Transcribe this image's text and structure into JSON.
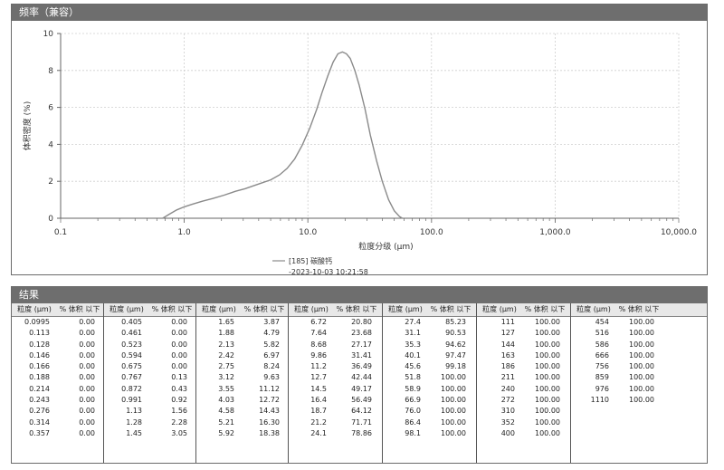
{
  "freq_panel": {
    "title": "频率（兼容）"
  },
  "results_panel": {
    "title": "结果"
  },
  "chart_data": {
    "type": "line",
    "title": "",
    "xlabel": "粒度分级 (µm)",
    "ylabel": "体积密度 (%)",
    "x_scale": "log",
    "xlim": [
      0.1,
      10000
    ],
    "ylim": [
      0,
      10
    ],
    "x_ticks": [
      0.1,
      1,
      10,
      100,
      1000,
      10000
    ],
    "x_tick_labels": [
      "0.1",
      "1.0",
      "10.0",
      "100.0",
      "1,000.0",
      "10,000.0"
    ],
    "y_ticks": [
      0,
      2,
      4,
      6,
      8,
      10
    ],
    "y_tick_labels": [
      "0",
      "2",
      "4",
      "6",
      "8",
      "10"
    ],
    "grid": true,
    "legend_position": "bottom-center",
    "series": [
      {
        "name": "[185] 碳酸钙",
        "subtitle": "-2023-10-03 10:21:58",
        "color": "#8a8a8a",
        "x": [
          0.67,
          0.75,
          0.87,
          1.0,
          1.15,
          1.4,
          1.7,
          2.1,
          2.6,
          3.1,
          3.6,
          4.2,
          5.0,
          5.9,
          6.8,
          7.8,
          9.0,
          10.4,
          11.8,
          13.0,
          14.5,
          16.0,
          17.5,
          19.0,
          20.5,
          22.0,
          24.0,
          26.0,
          29.0,
          32.0,
          36.0,
          40.0,
          45.0,
          50.0,
          55.0,
          58.0
        ],
        "y": [
          0.0,
          0.2,
          0.45,
          0.62,
          0.75,
          0.92,
          1.07,
          1.25,
          1.46,
          1.6,
          1.75,
          1.9,
          2.08,
          2.35,
          2.7,
          3.2,
          3.95,
          4.9,
          5.9,
          6.8,
          7.7,
          8.45,
          8.9,
          9.0,
          8.9,
          8.65,
          8.0,
          7.2,
          5.9,
          4.5,
          3.1,
          2.0,
          1.0,
          0.4,
          0.1,
          0.0
        ]
      }
    ]
  },
  "results": {
    "header_size": "粒度 (µm)",
    "header_pct": "% 体积 以下",
    "columns": [
      [
        [
          "0.0995",
          "0.00"
        ],
        [
          "0.113",
          "0.00"
        ],
        [
          "0.128",
          "0.00"
        ],
        [
          "0.146",
          "0.00"
        ],
        [
          "0.166",
          "0.00"
        ],
        [
          "0.188",
          "0.00"
        ],
        [
          "0.214",
          "0.00"
        ],
        [
          "0.243",
          "0.00"
        ],
        [
          "0.276",
          "0.00"
        ],
        [
          "0.314",
          "0.00"
        ],
        [
          "0.357",
          "0.00"
        ]
      ],
      [
        [
          "0.405",
          "0.00"
        ],
        [
          "0.461",
          "0.00"
        ],
        [
          "0.523",
          "0.00"
        ],
        [
          "0.594",
          "0.00"
        ],
        [
          "0.675",
          "0.00"
        ],
        [
          "0.767",
          "0.13"
        ],
        [
          "0.872",
          "0.43"
        ],
        [
          "0.991",
          "0.92"
        ],
        [
          "1.13",
          "1.56"
        ],
        [
          "1.28",
          "2.28"
        ],
        [
          "1.45",
          "3.05"
        ]
      ],
      [
        [
          "1.65",
          "3.87"
        ],
        [
          "1.88",
          "4.79"
        ],
        [
          "2.13",
          "5.82"
        ],
        [
          "2.42",
          "6.97"
        ],
        [
          "2.75",
          "8.24"
        ],
        [
          "3.12",
          "9.63"
        ],
        [
          "3.55",
          "11.12"
        ],
        [
          "4.03",
          "12.72"
        ],
        [
          "4.58",
          "14.43"
        ],
        [
          "5.21",
          "16.30"
        ],
        [
          "5.92",
          "18.38"
        ]
      ],
      [
        [
          "6.72",
          "20.80"
        ],
        [
          "7.64",
          "23.68"
        ],
        [
          "8.68",
          "27.17"
        ],
        [
          "9.86",
          "31.41"
        ],
        [
          "11.2",
          "36.49"
        ],
        [
          "12.7",
          "42.44"
        ],
        [
          "14.5",
          "49.17"
        ],
        [
          "16.4",
          "56.49"
        ],
        [
          "18.7",
          "64.12"
        ],
        [
          "21.2",
          "71.71"
        ],
        [
          "24.1",
          "78.86"
        ]
      ],
      [
        [
          "27.4",
          "85.23"
        ],
        [
          "31.1",
          "90.53"
        ],
        [
          "35.3",
          "94.62"
        ],
        [
          "40.1",
          "97.47"
        ],
        [
          "45.6",
          "99.18"
        ],
        [
          "51.8",
          "100.00"
        ],
        [
          "58.9",
          "100.00"
        ],
        [
          "66.9",
          "100.00"
        ],
        [
          "76.0",
          "100.00"
        ],
        [
          "86.4",
          "100.00"
        ],
        [
          "98.1",
          "100.00"
        ]
      ],
      [
        [
          "111",
          "100.00"
        ],
        [
          "127",
          "100.00"
        ],
        [
          "144",
          "100.00"
        ],
        [
          "163",
          "100.00"
        ],
        [
          "186",
          "100.00"
        ],
        [
          "211",
          "100.00"
        ],
        [
          "240",
          "100.00"
        ],
        [
          "272",
          "100.00"
        ],
        [
          "310",
          "100.00"
        ],
        [
          "352",
          "100.00"
        ],
        [
          "400",
          "100.00"
        ]
      ],
      [
        [
          "454",
          "100.00"
        ],
        [
          "516",
          "100.00"
        ],
        [
          "586",
          "100.00"
        ],
        [
          "666",
          "100.00"
        ],
        [
          "756",
          "100.00"
        ],
        [
          "859",
          "100.00"
        ],
        [
          "976",
          "100.00"
        ],
        [
          "1110",
          "100.00"
        ]
      ]
    ]
  }
}
